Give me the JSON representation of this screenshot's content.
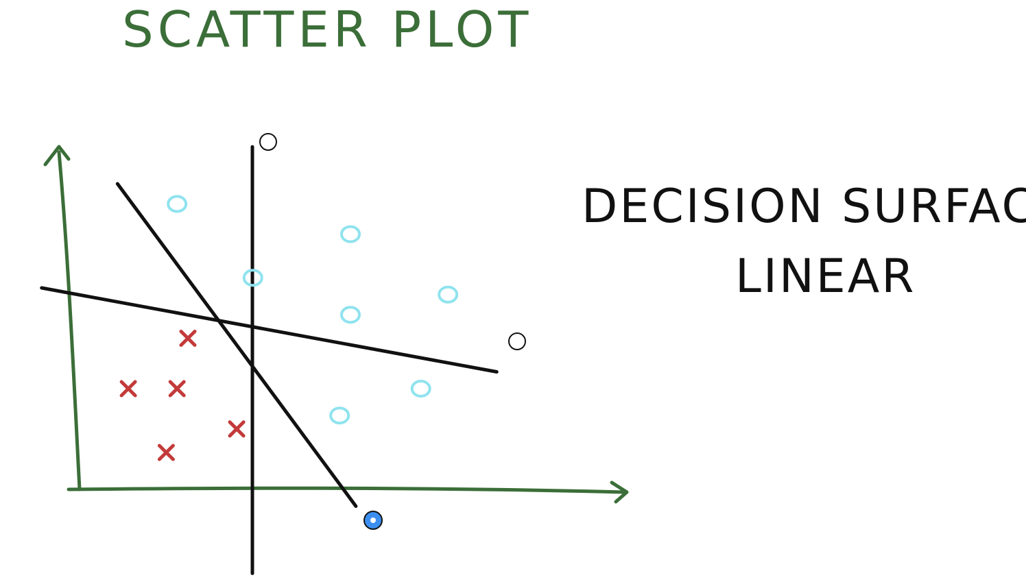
{
  "title": "SCATTER PLOT",
  "note_line1": "DECISION SURFACE",
  "note_line2": "LINEAR",
  "colors": {
    "axis": "#3b6e38",
    "title": "#3b6e38",
    "ink": "#111111",
    "o_class": "#8fe3ee",
    "x_class": "#c33a3a",
    "handle_fill": "#ffffff",
    "handle_active": "#3c8ff0"
  },
  "icons": {
    "handle": "circle-handle-icon",
    "active_handle": "selected-handle-icon"
  },
  "chart_data": {
    "type": "scatter",
    "title": "SCATTER PLOT",
    "xlabel": "",
    "ylabel": "",
    "xlim": [
      0,
      100
    ],
    "ylim": [
      0,
      100
    ],
    "grid": false,
    "series": [
      {
        "marker": "o",
        "x": [
          18,
          50,
          32,
          68,
          50,
          63,
          48
        ],
        "y": [
          85,
          76,
          63,
          58,
          52,
          30,
          22
        ]
      },
      {
        "marker": "x",
        "x": [
          20,
          9,
          18,
          29,
          16
        ],
        "y": [
          45,
          30,
          30,
          18,
          11
        ]
      }
    ],
    "decision_lines": [
      {
        "x": [
          31.9,
          31.9
        ],
        "y": [
          102,
          -25
        ]
      },
      {
        "x": [
          7,
          51
        ],
        "y": [
          91,
          -5
        ]
      },
      {
        "x": [
          -7,
          77
        ],
        "y": [
          60,
          35
        ]
      }
    ]
  }
}
